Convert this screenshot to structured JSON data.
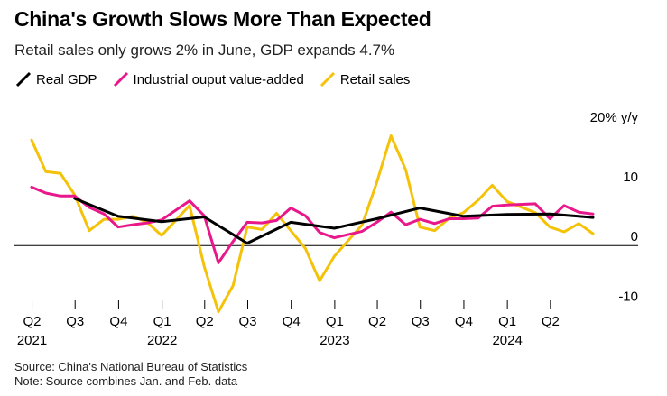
{
  "colors": {
    "real_gdp": "#000000",
    "industrial": "#e8178a",
    "retail": "#f5c20a",
    "zero_line": "#000000"
  },
  "chart_data": {
    "type": "line",
    "title": "China's Growth Slows More Than Expected",
    "subtitle": "Retail sales only grows 2% in June, GDP expands 4.7%",
    "ylabel": "20% y/y",
    "ylim": [
      -11,
      21.5
    ],
    "yticks": [
      {
        "value": 20,
        "label": "20% y/y"
      },
      {
        "value": 10,
        "label": "10"
      },
      {
        "value": 0,
        "label": "0"
      },
      {
        "value": -10,
        "label": "-10"
      }
    ],
    "x_domain": [
      "2021-03-31",
      "2024-06-30"
    ],
    "x_ticks": [
      {
        "date": "2021-04-01",
        "quarter": "Q2",
        "year": "2021"
      },
      {
        "date": "2021-07-01",
        "quarter": "Q3",
        "year": ""
      },
      {
        "date": "2021-10-01",
        "quarter": "Q4",
        "year": ""
      },
      {
        "date": "2022-01-01",
        "quarter": "Q1",
        "year": "2022"
      },
      {
        "date": "2022-04-01",
        "quarter": "Q2",
        "year": ""
      },
      {
        "date": "2022-07-01",
        "quarter": "Q3",
        "year": ""
      },
      {
        "date": "2022-10-01",
        "quarter": "Q4",
        "year": ""
      },
      {
        "date": "2023-01-01",
        "quarter": "Q1",
        "year": "2023"
      },
      {
        "date": "2023-04-01",
        "quarter": "Q2",
        "year": ""
      },
      {
        "date": "2023-07-01",
        "quarter": "Q3",
        "year": ""
      },
      {
        "date": "2023-10-01",
        "quarter": "Q4",
        "year": ""
      },
      {
        "date": "2024-01-01",
        "quarter": "Q1",
        "year": "2024"
      },
      {
        "date": "2024-04-01",
        "quarter": "Q2",
        "year": ""
      }
    ],
    "legend_position": "top-left",
    "grid": false,
    "series": [
      {
        "name": "Real GDP",
        "key": "real_gdp",
        "points": [
          {
            "x": "2021-06-30",
            "y": 7.9
          },
          {
            "x": "2021-09-30",
            "y": 4.9
          },
          {
            "x": "2021-12-31",
            "y": 4.0
          },
          {
            "x": "2022-03-31",
            "y": 4.8
          },
          {
            "x": "2022-06-30",
            "y": 0.4
          },
          {
            "x": "2022-09-30",
            "y": 3.9
          },
          {
            "x": "2022-12-31",
            "y": 2.9
          },
          {
            "x": "2023-03-31",
            "y": 4.5
          },
          {
            "x": "2023-06-30",
            "y": 6.3
          },
          {
            "x": "2023-09-30",
            "y": 4.9
          },
          {
            "x": "2023-12-31",
            "y": 5.2
          },
          {
            "x": "2024-03-31",
            "y": 5.3
          },
          {
            "x": "2024-06-30",
            "y": 4.7
          }
        ]
      },
      {
        "name": "Industrial ouput value-added",
        "key": "industrial",
        "points": [
          {
            "x": "2021-03-31",
            "y": 9.8
          },
          {
            "x": "2021-04-30",
            "y": 8.8
          },
          {
            "x": "2021-05-31",
            "y": 8.3
          },
          {
            "x": "2021-06-30",
            "y": 8.3
          },
          {
            "x": "2021-07-31",
            "y": 6.4
          },
          {
            "x": "2021-08-31",
            "y": 5.3
          },
          {
            "x": "2021-09-30",
            "y": 3.1
          },
          {
            "x": "2021-10-31",
            "y": 3.5
          },
          {
            "x": "2021-11-30",
            "y": 3.8
          },
          {
            "x": "2021-12-31",
            "y": 4.3
          },
          {
            "x": "2022-02-28",
            "y": 7.5
          },
          {
            "x": "2022-03-31",
            "y": 5.0
          },
          {
            "x": "2022-04-30",
            "y": -2.9
          },
          {
            "x": "2022-05-31",
            "y": 0.7
          },
          {
            "x": "2022-06-30",
            "y": 3.9
          },
          {
            "x": "2022-07-31",
            "y": 3.8
          },
          {
            "x": "2022-08-31",
            "y": 4.2
          },
          {
            "x": "2022-09-30",
            "y": 6.3
          },
          {
            "x": "2022-10-31",
            "y": 5.0
          },
          {
            "x": "2022-11-30",
            "y": 2.2
          },
          {
            "x": "2022-12-31",
            "y": 1.3
          },
          {
            "x": "2023-02-28",
            "y": 2.4
          },
          {
            "x": "2023-03-31",
            "y": 3.9
          },
          {
            "x": "2023-04-30",
            "y": 5.6
          },
          {
            "x": "2023-05-31",
            "y": 3.5
          },
          {
            "x": "2023-06-30",
            "y": 4.4
          },
          {
            "x": "2023-07-31",
            "y": 3.7
          },
          {
            "x": "2023-08-31",
            "y": 4.5
          },
          {
            "x": "2023-09-30",
            "y": 4.5
          },
          {
            "x": "2023-10-31",
            "y": 4.6
          },
          {
            "x": "2023-11-30",
            "y": 6.6
          },
          {
            "x": "2023-12-31",
            "y": 6.8
          },
          {
            "x": "2024-02-29",
            "y": 7.0
          },
          {
            "x": "2024-03-31",
            "y": 4.5
          },
          {
            "x": "2024-04-30",
            "y": 6.7
          },
          {
            "x": "2024-05-31",
            "y": 5.6
          },
          {
            "x": "2024-06-30",
            "y": 5.3
          }
        ]
      },
      {
        "name": "Retail sales",
        "key": "retail",
        "points": [
          {
            "x": "2021-03-31",
            "y": 17.7
          },
          {
            "x": "2021-04-30",
            "y": 12.4
          },
          {
            "x": "2021-05-31",
            "y": 12.1
          },
          {
            "x": "2021-06-30",
            "y": 8.5
          },
          {
            "x": "2021-07-31",
            "y": 2.5
          },
          {
            "x": "2021-08-31",
            "y": 4.4
          },
          {
            "x": "2021-09-30",
            "y": 4.4
          },
          {
            "x": "2021-10-31",
            "y": 4.9
          },
          {
            "x": "2021-11-30",
            "y": 3.9
          },
          {
            "x": "2021-12-31",
            "y": 1.7
          },
          {
            "x": "2022-02-28",
            "y": 6.7
          },
          {
            "x": "2022-03-31",
            "y": -3.5
          },
          {
            "x": "2022-04-30",
            "y": -11.1
          },
          {
            "x": "2022-05-31",
            "y": -6.7
          },
          {
            "x": "2022-06-30",
            "y": 3.1
          },
          {
            "x": "2022-07-31",
            "y": 2.7
          },
          {
            "x": "2022-08-31",
            "y": 5.4
          },
          {
            "x": "2022-09-30",
            "y": 2.5
          },
          {
            "x": "2022-10-31",
            "y": -0.5
          },
          {
            "x": "2022-11-30",
            "y": -5.9
          },
          {
            "x": "2022-12-31",
            "y": -1.8
          },
          {
            "x": "2023-02-28",
            "y": 3.5
          },
          {
            "x": "2023-03-31",
            "y": 10.6
          },
          {
            "x": "2023-04-30",
            "y": 18.4
          },
          {
            "x": "2023-05-31",
            "y": 12.7
          },
          {
            "x": "2023-06-30",
            "y": 3.1
          },
          {
            "x": "2023-07-31",
            "y": 2.5
          },
          {
            "x": "2023-08-31",
            "y": 4.6
          },
          {
            "x": "2023-09-30",
            "y": 5.5
          },
          {
            "x": "2023-10-31",
            "y": 7.6
          },
          {
            "x": "2023-11-30",
            "y": 10.1
          },
          {
            "x": "2023-12-31",
            "y": 7.4
          },
          {
            "x": "2024-02-29",
            "y": 5.5
          },
          {
            "x": "2024-03-31",
            "y": 3.1
          },
          {
            "x": "2024-04-30",
            "y": 2.3
          },
          {
            "x": "2024-05-31",
            "y": 3.7
          },
          {
            "x": "2024-06-30",
            "y": 2.0
          }
        ]
      }
    ]
  },
  "source": {
    "line1": "Source: China's National Bureau of Statistics",
    "line2": "Note: Source combines Jan. and Feb. data"
  }
}
